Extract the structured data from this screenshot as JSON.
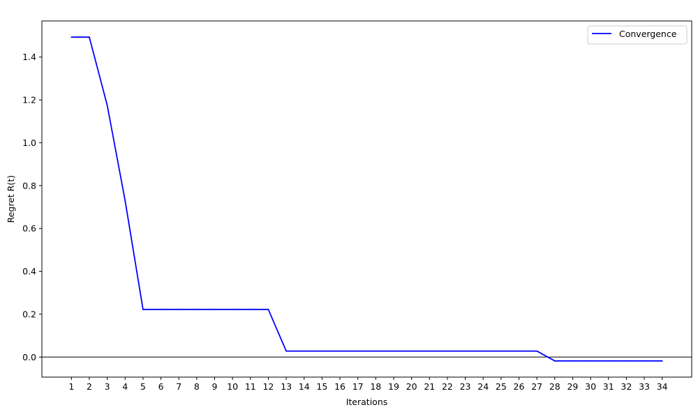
{
  "chart_data": {
    "type": "line",
    "title": "",
    "xlabel": "Iterations",
    "ylabel": "Regret R(t)",
    "x": [
      1,
      2,
      3,
      4,
      5,
      6,
      7,
      8,
      9,
      10,
      11,
      12,
      13,
      14,
      15,
      16,
      17,
      18,
      19,
      20,
      21,
      22,
      23,
      24,
      25,
      26,
      27,
      28,
      29,
      30,
      31,
      32,
      33,
      34
    ],
    "series": [
      {
        "name": "Convergence",
        "color": "#0000ff",
        "values": [
          1.493,
          1.493,
          1.175,
          0.73,
          0.222,
          0.222,
          0.222,
          0.222,
          0.222,
          0.222,
          0.222,
          0.222,
          0.028,
          0.028,
          0.028,
          0.028,
          0.028,
          0.028,
          0.028,
          0.028,
          0.028,
          0.028,
          0.028,
          0.028,
          0.028,
          0.028,
          0.028,
          -0.018,
          -0.018,
          -0.018,
          -0.018,
          -0.018,
          -0.018,
          -0.018
        ]
      }
    ],
    "xlim": [
      -0.65,
      35.65
    ],
    "ylim": [
      -0.0935,
      1.5685
    ],
    "yticks": [
      0.0,
      0.2,
      0.4,
      0.6,
      0.8,
      1.0,
      1.2,
      1.4
    ],
    "ytick_labels": [
      "0.0",
      "0.2",
      "0.4",
      "0.6",
      "0.8",
      "1.0",
      "1.2",
      "1.4"
    ],
    "xtick_labels": [
      "1",
      "2",
      "3",
      "4",
      "5",
      "6",
      "7",
      "8",
      "9",
      "10",
      "11",
      "12",
      "13",
      "14",
      "15",
      "16",
      "17",
      "18",
      "19",
      "20",
      "21",
      "22",
      "23",
      "24",
      "25",
      "26",
      "27",
      "28",
      "29",
      "30",
      "31",
      "32",
      "33",
      "34"
    ],
    "hline": 0,
    "grid": false,
    "legend_position": "top-right"
  }
}
